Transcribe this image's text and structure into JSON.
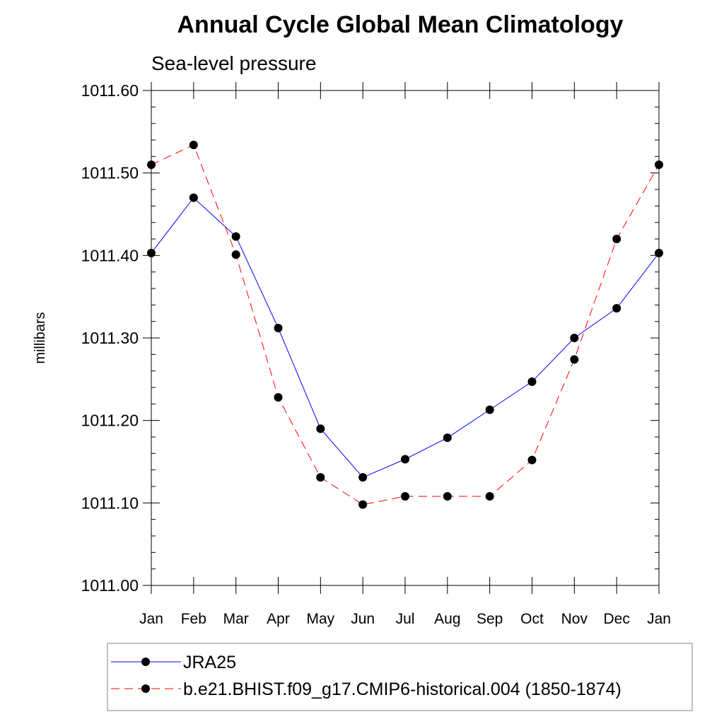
{
  "chart_data": {
    "type": "line",
    "title": "Annual Cycle Global Mean Climatology",
    "subtitle": "Sea-level pressure",
    "ylabel": "millibars",
    "xlabel": "",
    "categories": [
      "Jan",
      "Feb",
      "Mar",
      "Apr",
      "May",
      "Jun",
      "Jul",
      "Aug",
      "Sep",
      "Oct",
      "Nov",
      "Dec",
      "Jan"
    ],
    "ylim": [
      1011.0,
      1011.6
    ],
    "yticks": [
      "1011.00",
      "1011.10",
      "1011.20",
      "1011.30",
      "1011.40",
      "1011.50",
      "1011.60"
    ],
    "series": [
      {
        "name": "JRA25",
        "color": "#0000ff",
        "dash": "solid",
        "values": [
          1011.403,
          1011.47,
          1011.423,
          1011.312,
          1011.19,
          1011.131,
          1011.153,
          1011.179,
          1011.213,
          1011.247,
          1011.3,
          1011.336,
          1011.403
        ]
      },
      {
        "name": "b.e21.BHIST.f09_g17.CMIP6-historical.004 (1850-1874)",
        "color": "#ff0000",
        "dash": "dashed",
        "values": [
          1011.51,
          1011.534,
          1011.401,
          1011.228,
          1011.131,
          1011.098,
          1011.108,
          1011.108,
          1011.108,
          1011.152,
          1011.274,
          1011.42,
          1011.51
        ]
      }
    ],
    "grid": false,
    "legend_position": "bottom"
  }
}
